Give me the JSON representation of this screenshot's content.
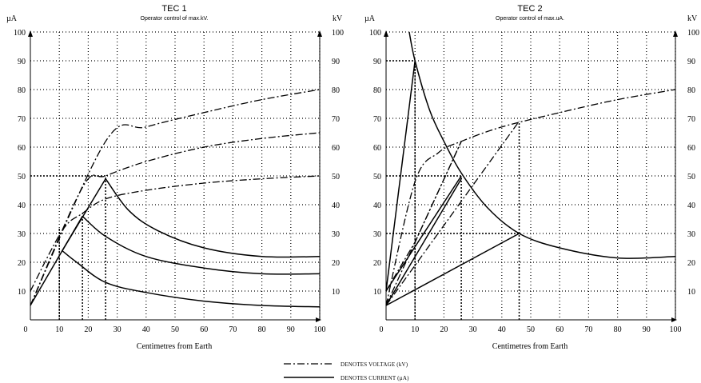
{
  "chart_data": [
    {
      "type": "line",
      "title": "TEC 1",
      "subtitle": "Operator control of max.kV.",
      "xlabel": "Centimetres from Earth",
      "ylabel_left": "µA",
      "ylabel_right": "kV",
      "xlim": [
        0,
        100
      ],
      "ylim": [
        0,
        100
      ],
      "x_ticks": [
        "0",
        "10",
        "20",
        "30",
        "40",
        "50",
        "60",
        "70",
        "80",
        "90",
        "100"
      ],
      "y_ticks_left": [
        "10",
        "20",
        "30",
        "40",
        "50",
        "60",
        "70",
        "80",
        "90",
        "100"
      ],
      "y_ticks_right": [
        "10",
        "20",
        "30",
        "40",
        "50",
        "60",
        "70",
        "80",
        "90",
        "100"
      ],
      "grid": true,
      "series": [
        {
          "kind": "voltage",
          "points": [
            [
              0,
              10
            ],
            [
              11,
              31
            ],
            [
              18,
              37
            ],
            [
              26,
              42
            ],
            [
              40,
              45
            ],
            [
              60,
              47.5
            ],
            [
              80,
              49
            ],
            [
              100,
              50
            ]
          ]
        },
        {
          "kind": "voltage",
          "points": [
            [
              0,
              5
            ],
            [
              18,
              46
            ],
            [
              26,
              50
            ],
            [
              40,
              55
            ],
            [
              60,
              60
            ],
            [
              80,
              63
            ],
            [
              100,
              65
            ]
          ]
        },
        {
          "kind": "voltage",
          "points": [
            [
              0,
              5
            ],
            [
              26,
              62
            ],
            [
              40,
              67
            ],
            [
              60,
              72
            ],
            [
              80,
              76.5
            ],
            [
              100,
              80
            ]
          ]
        },
        {
          "kind": "current",
          "points": [
            [
              0,
              5
            ],
            [
              11,
              24
            ],
            [
              26,
              49
            ]
          ]
        },
        {
          "kind": "current",
          "points": [
            [
              11,
              24
            ],
            [
              18,
              36
            ]
          ]
        },
        {
          "kind": "current",
          "points": [
            [
              11,
              24
            ],
            [
              16,
              20
            ],
            [
              26,
              13
            ],
            [
              40,
              9.5
            ],
            [
              60,
              6.5
            ],
            [
              80,
              5
            ],
            [
              100,
              4.5
            ]
          ]
        },
        {
          "kind": "current",
          "points": [
            [
              18,
              36
            ],
            [
              26,
              29
            ],
            [
              40,
              22
            ],
            [
              60,
              18
            ],
            [
              80,
              16
            ],
            [
              100,
              16
            ]
          ]
        },
        {
          "kind": "current",
          "points": [
            [
              26,
              49
            ],
            [
              34,
              38
            ],
            [
              44,
              31
            ],
            [
              60,
              25
            ],
            [
              80,
              22
            ],
            [
              100,
              22
            ]
          ]
        }
      ],
      "guides": [
        {
          "from": [
            0,
            50
          ],
          "to": [
            26,
            50
          ]
        },
        {
          "from": [
            10,
            0
          ],
          "to": [
            10,
            32
          ]
        },
        {
          "from": [
            18,
            0
          ],
          "to": [
            18,
            37
          ]
        },
        {
          "from": [
            26,
            0
          ],
          "to": [
            26,
            50
          ]
        }
      ]
    },
    {
      "type": "line",
      "title": "TEC 2",
      "subtitle": "Operator control of max.uA.",
      "xlabel": "Centimetres from Earth",
      "ylabel_left": "µA",
      "ylabel_right": "kV",
      "xlim": [
        0,
        100
      ],
      "ylim": [
        0,
        100
      ],
      "x_ticks": [
        "0",
        "10",
        "20",
        "30",
        "40",
        "50",
        "60",
        "70",
        "80",
        "90",
        "100"
      ],
      "y_ticks_left": [
        "10",
        "20",
        "30",
        "40",
        "50",
        "60",
        "70",
        "80",
        "90",
        "100"
      ],
      "y_ticks_right": [
        "10",
        "20",
        "30",
        "40",
        "50",
        "60",
        "70",
        "80",
        "90",
        "100"
      ],
      "grid": true,
      "series": [
        {
          "kind": "voltage",
          "points": [
            [
              0,
              5
            ],
            [
              10,
              48
            ],
            [
              18,
              58
            ],
            [
              26,
              62
            ],
            [
              40,
              67
            ],
            [
              60,
              72
            ],
            [
              80,
              76.5
            ],
            [
              100,
              80
            ]
          ]
        },
        {
          "kind": "voltage",
          "points": [
            [
              0,
              5
            ],
            [
              26,
              62
            ]
          ]
        },
        {
          "kind": "voltage",
          "points": [
            [
              0,
              5
            ],
            [
              46,
              69
            ]
          ]
        },
        {
          "kind": "voltage",
          "points": [
            [
              0,
              10
            ],
            [
              10,
              27
            ],
            [
              26,
              62
            ]
          ]
        },
        {
          "kind": "current",
          "points": [
            [
              8,
              100
            ],
            [
              10,
              90
            ],
            [
              15,
              73
            ],
            [
              20,
              62
            ],
            [
              26,
              51
            ],
            [
              35,
              39
            ],
            [
              46,
              30
            ],
            [
              60,
              25
            ],
            [
              80,
              21.5
            ],
            [
              100,
              22
            ]
          ]
        },
        {
          "kind": "current",
          "points": [
            [
              0,
              10
            ],
            [
              10,
              90
            ]
          ]
        },
        {
          "kind": "current",
          "points": [
            [
              0,
              5
            ],
            [
              26,
              49
            ]
          ]
        },
        {
          "kind": "current",
          "points": [
            [
              0,
              5
            ],
            [
              46,
              30
            ]
          ]
        },
        {
          "kind": "current",
          "points": [
            [
              0,
              10
            ],
            [
              26,
              50
            ]
          ]
        }
      ],
      "guides": [
        {
          "from": [
            0,
            90
          ],
          "to": [
            10,
            90
          ]
        },
        {
          "from": [
            0,
            50
          ],
          "to": [
            26,
            50
          ]
        },
        {
          "from": [
            0,
            30
          ],
          "to": [
            46,
            30
          ]
        },
        {
          "from": [
            10,
            0
          ],
          "to": [
            10,
            90
          ]
        },
        {
          "from": [
            26,
            0
          ],
          "to": [
            26,
            50
          ]
        },
        {
          "from": [
            46,
            0
          ],
          "to": [
            46,
            69
          ]
        }
      ]
    }
  ],
  "legend": {
    "voltage_label": "DENOTES VOLTAGE (kV)",
    "current_label": "DENOTES CURRENT (µA)"
  }
}
